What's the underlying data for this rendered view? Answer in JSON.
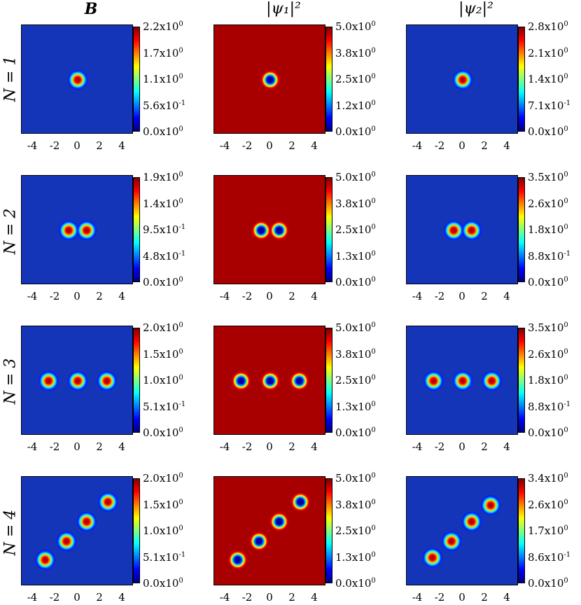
{
  "colors": {
    "low": "#00008f",
    "background_blue": "#1535b8",
    "background_red": "#a80000",
    "high": "#7f0000"
  },
  "column_titles": [
    "B",
    "|ψ₁|²",
    "|ψ₂|²"
  ],
  "row_labels": [
    "N = 1",
    "N = 2",
    "N = 3",
    "N = 4"
  ],
  "x_tick_labels": [
    "-4",
    "-2",
    "0",
    "2",
    "4"
  ],
  "chart_data": [
    {
      "type": "heatmap",
      "row": "N = 1",
      "column": "B",
      "background": "low",
      "colorbar_ticks": [
        "0.0x10^0",
        "5.6x10^-1",
        "1.1x10^0",
        "1.7x10^0",
        "2.2x10^0"
      ],
      "range": [
        0,
        2.2
      ],
      "peaks": [
        [
          0,
          0
        ]
      ],
      "xticks": [
        -4,
        -2,
        0,
        2,
        4
      ]
    },
    {
      "type": "heatmap",
      "row": "N = 1",
      "column": "|ψ₁|²",
      "background": "high",
      "colorbar_ticks": [
        "0.0x10^0",
        "1.2x10^0",
        "2.5x10^0",
        "3.8x10^0",
        "5.0x10^0"
      ],
      "range": [
        0,
        5.0
      ],
      "peaks": [
        [
          0,
          0
        ]
      ],
      "xticks": [
        -4,
        -2,
        0,
        2,
        4
      ]
    },
    {
      "type": "heatmap",
      "row": "N = 1",
      "column": "|ψ₂|²",
      "background": "low",
      "colorbar_ticks": [
        "0.0x10^0",
        "7.1x10^-1",
        "1.4x10^0",
        "2.1x10^0",
        "2.8x10^0"
      ],
      "range": [
        0,
        2.8
      ],
      "peaks": [
        [
          0,
          0
        ]
      ],
      "xticks": [
        -4,
        -2,
        0,
        2,
        4
      ]
    },
    {
      "type": "heatmap",
      "row": "N = 2",
      "column": "B",
      "background": "low",
      "colorbar_ticks": [
        "0.0x10^0",
        "4.8x10^-1",
        "9.5x10^-1",
        "1.4x10^0",
        "1.9x10^0"
      ],
      "range": [
        0,
        1.9
      ],
      "peaks": [
        [
          -0.8,
          0
        ],
        [
          0.8,
          0
        ]
      ],
      "xticks": [
        -4,
        -2,
        0,
        2,
        4
      ]
    },
    {
      "type": "heatmap",
      "row": "N = 2",
      "column": "|ψ₁|²",
      "background": "high",
      "colorbar_ticks": [
        "0.0x10^0",
        "1.3x10^0",
        "2.5x10^0",
        "3.8x10^0",
        "5.0x10^0"
      ],
      "range": [
        0,
        5.0
      ],
      "peaks": [
        [
          -0.8,
          0
        ],
        [
          0.8,
          0
        ]
      ],
      "xticks": [
        -4,
        -2,
        0,
        2,
        4
      ]
    },
    {
      "type": "heatmap",
      "row": "N = 2",
      "column": "|ψ₂|²",
      "background": "low",
      "colorbar_ticks": [
        "0.0x10^0",
        "8.8x10^-1",
        "1.8x10^0",
        "2.6x10^0",
        "3.5x10^0"
      ],
      "range": [
        0,
        3.5
      ],
      "peaks": [
        [
          -0.8,
          0
        ],
        [
          0.8,
          0
        ]
      ],
      "xticks": [
        -4,
        -2,
        0,
        2,
        4
      ]
    },
    {
      "type": "heatmap",
      "row": "N = 3",
      "column": "B",
      "background": "low",
      "colorbar_ticks": [
        "0.0x10^0",
        "5.1x10^-1",
        "1.0x10^0",
        "1.5x10^0",
        "2.0x10^0"
      ],
      "range": [
        0,
        2.0
      ],
      "peaks": [
        [
          -2.6,
          0
        ],
        [
          0,
          0
        ],
        [
          2.6,
          0
        ]
      ],
      "xticks": [
        -4,
        -2,
        0,
        2,
        4
      ]
    },
    {
      "type": "heatmap",
      "row": "N = 3",
      "column": "|ψ₁|²",
      "background": "high",
      "colorbar_ticks": [
        "0.0x10^0",
        "1.3x10^0",
        "2.5x10^0",
        "3.8x10^0",
        "5.0x10^0"
      ],
      "range": [
        0,
        5.0
      ],
      "peaks": [
        [
          -2.6,
          0
        ],
        [
          0,
          0
        ],
        [
          2.6,
          0
        ]
      ],
      "xticks": [
        -4,
        -2,
        0,
        2,
        4
      ]
    },
    {
      "type": "heatmap",
      "row": "N = 3",
      "column": "|ψ₂|²",
      "background": "low",
      "colorbar_ticks": [
        "0.0x10^0",
        "8.8x10^-1",
        "1.8x10^0",
        "2.6x10^0",
        "3.5x10^0"
      ],
      "range": [
        0,
        3.5
      ],
      "peaks": [
        [
          -2.6,
          0
        ],
        [
          0,
          0
        ],
        [
          2.6,
          0
        ]
      ],
      "xticks": [
        -4,
        -2,
        0,
        2,
        4
      ]
    },
    {
      "type": "heatmap",
      "row": "N = 4",
      "column": "B",
      "background": "low",
      "colorbar_ticks": [
        "0.0x10^0",
        "5.1x10^-1",
        "1.0x10^0",
        "1.5x10^0",
        "2.0x10^0"
      ],
      "range": [
        0,
        2.0
      ],
      "peaks": [
        [
          -2.9,
          -2.6
        ],
        [
          -1.0,
          -0.9
        ],
        [
          0.8,
          0.9
        ],
        [
          2.7,
          2.7
        ]
      ],
      "xticks": [
        -4,
        -2,
        0,
        2,
        4
      ]
    },
    {
      "type": "heatmap",
      "row": "N = 4",
      "column": "|ψ₁|²",
      "background": "high",
      "colorbar_ticks": [
        "0.0x10^0",
        "1.3x10^0",
        "2.5x10^0",
        "3.8x10^0",
        "5.0x10^0"
      ],
      "range": [
        0,
        5.0
      ],
      "peaks": [
        [
          -2.9,
          -2.6
        ],
        [
          -1.0,
          -0.9
        ],
        [
          0.8,
          0.9
        ],
        [
          2.7,
          2.7
        ]
      ],
      "xticks": [
        -4,
        -2,
        0,
        2,
        4
      ]
    },
    {
      "type": "heatmap",
      "row": "N = 4",
      "column": "|ψ₂|²",
      "background": "low",
      "colorbar_ticks": [
        "0.0x10^0",
        "8.6x10^-1",
        "1.7x10^0",
        "2.6x10^0",
        "3.4x10^0"
      ],
      "range": [
        0,
        3.4
      ],
      "peaks": [
        [
          -2.7,
          -2.4
        ],
        [
          -1.0,
          -0.9
        ],
        [
          0.8,
          0.9
        ],
        [
          2.5,
          2.4
        ]
      ],
      "xticks": [
        -4,
        -2,
        0,
        2,
        4
      ]
    }
  ]
}
